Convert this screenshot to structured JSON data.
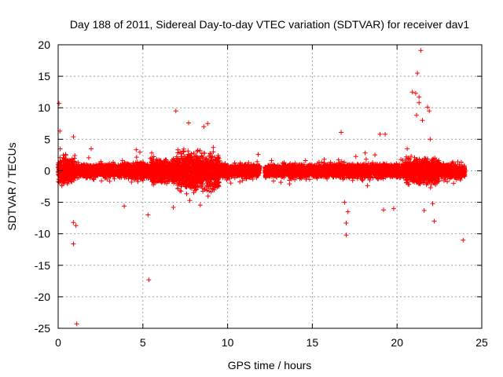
{
  "chart_data": {
    "type": "scatter",
    "title": "Day 188 of 2011, Sidereal Day-to-day VTEC variation (SDTVAR) for receiver dav1",
    "xlabel": "GPS time / hours",
    "ylabel": "SDTVAR / TECUs",
    "xlim": [
      0,
      25
    ],
    "ylim": [
      -25,
      20
    ],
    "xticks": [
      0,
      5,
      10,
      15,
      20,
      25
    ],
    "yticks": [
      -25,
      -20,
      -15,
      -10,
      -5,
      0,
      5,
      10,
      15,
      20
    ],
    "grid": true,
    "marker": "+",
    "color": "#ff0000",
    "data_gap_hours": [
      11.9,
      12.2
    ],
    "series": [
      {
        "name": "SDTVAR",
        "noise_envelope": [
          {
            "x": [
              0.0,
              1.0
            ],
            "spread": 1.8
          },
          {
            "x": [
              1.0,
              4.0
            ],
            "spread": 1.0
          },
          {
            "x": [
              4.0,
              5.5
            ],
            "spread": 1.3
          },
          {
            "x": [
              5.5,
              7.0
            ],
            "spread": 1.8
          },
          {
            "x": [
              7.0,
              9.5
            ],
            "spread": 3.0
          },
          {
            "x": [
              9.5,
              11.9
            ],
            "spread": 1.0
          },
          {
            "x": [
              12.2,
              16.5
            ],
            "spread": 1.0
          },
          {
            "x": [
              16.5,
              20.5
            ],
            "spread": 1.1
          },
          {
            "x": [
              20.5,
              22.5
            ],
            "spread": 2.0
          },
          {
            "x": [
              22.5,
              24.0
            ],
            "spread": 1.1
          }
        ],
        "outliers": [
          {
            "x": 0.05,
            "y": 10.7
          },
          {
            "x": 0.1,
            "y": 6.3
          },
          {
            "x": 0.9,
            "y": 5.4
          },
          {
            "x": 0.9,
            "y": -8.2
          },
          {
            "x": 1.05,
            "y": -8.7
          },
          {
            "x": 0.9,
            "y": -11.6
          },
          {
            "x": 1.1,
            "y": -24.3
          },
          {
            "x": 1.95,
            "y": 3.5
          },
          {
            "x": 3.9,
            "y": -5.6
          },
          {
            "x": 5.35,
            "y": -17.3
          },
          {
            "x": 5.3,
            "y": -7.0
          },
          {
            "x": 6.95,
            "y": 9.5
          },
          {
            "x": 7.7,
            "y": 7.6
          },
          {
            "x": 8.6,
            "y": 7.0
          },
          {
            "x": 6.8,
            "y": -5.8
          },
          {
            "x": 16.7,
            "y": 6.1
          },
          {
            "x": 17.0,
            "y": -10.2
          },
          {
            "x": 17.0,
            "y": -8.3
          },
          {
            "x": 19.0,
            "y": 5.8
          },
          {
            "x": 19.3,
            "y": 5.8
          },
          {
            "x": 19.2,
            "y": -6.2
          },
          {
            "x": 19.8,
            "y": -6.0
          },
          {
            "x": 20.6,
            "y": 3.5
          },
          {
            "x": 20.9,
            "y": 12.5
          },
          {
            "x": 21.1,
            "y": 12.3
          },
          {
            "x": 21.2,
            "y": 15.5
          },
          {
            "x": 21.4,
            "y": 19.1
          },
          {
            "x": 21.3,
            "y": 10.8
          },
          {
            "x": 21.15,
            "y": 8.8
          },
          {
            "x": 21.3,
            "y": 11.7
          },
          {
            "x": 21.5,
            "y": 8.0
          },
          {
            "x": 21.8,
            "y": 10.1
          },
          {
            "x": 21.9,
            "y": 9.5
          },
          {
            "x": 21.6,
            "y": -6.3
          },
          {
            "x": 22.1,
            "y": -5.2
          },
          {
            "x": 22.2,
            "y": -8.0
          },
          {
            "x": 23.9,
            "y": -11.0
          },
          {
            "x": 17.1,
            "y": -6.5
          },
          {
            "x": 16.9,
            "y": -5.0
          }
        ]
      }
    ]
  }
}
